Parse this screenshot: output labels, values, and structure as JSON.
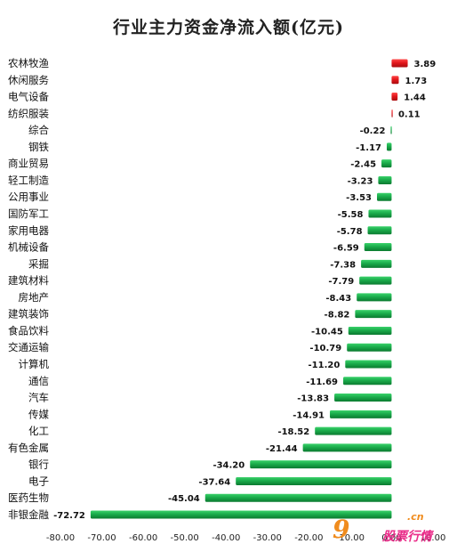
{
  "chart_data": {
    "type": "bar",
    "orientation": "horizontal",
    "title": "行业主力资金净流入额(亿元)",
    "categories": [
      "农林牧渔",
      "休闲服务",
      "电气设备",
      "纺织服装",
      "综合",
      "钢铁",
      "商业贸易",
      "轻工制造",
      "公用事业",
      "国防军工",
      "家用电器",
      "机械设备",
      "采掘",
      "建筑材料",
      "房地产",
      "建筑装饰",
      "食品饮料",
      "交通运输",
      "计算机",
      "通信",
      "汽车",
      "传媒",
      "化工",
      "有色金属",
      "银行",
      "电子",
      "医药生物",
      "非银金融"
    ],
    "values": [
      3.89,
      1.73,
      1.44,
      0.11,
      -0.22,
      -1.17,
      -2.45,
      -3.23,
      -3.53,
      -5.58,
      -5.78,
      -6.59,
      -7.38,
      -7.79,
      -8.43,
      -8.82,
      -10.45,
      -10.79,
      -11.2,
      -11.69,
      -13.83,
      -14.91,
      -18.52,
      -21.44,
      -34.2,
      -37.64,
      -45.04,
      -72.72
    ],
    "value_labels": [
      "3.89",
      "1.73",
      "1.44",
      "0.11",
      "-0.22",
      "-1.17",
      "-2.45",
      "-3.23",
      "-3.53",
      "-5.58",
      "-5.78",
      "-6.59",
      "-7.38",
      "-7.79",
      "-8.43",
      "-8.82",
      "-10.45",
      "-10.79",
      "-11.20",
      "-11.69",
      "-13.83",
      "-14.91",
      "-18.52",
      "-21.44",
      "-34.20",
      "-37.64",
      "-45.04",
      "-72.72"
    ],
    "xlim": [
      -80,
      10
    ],
    "x_ticks": [
      -80,
      -70,
      -60,
      -50,
      -40,
      -30,
      -20,
      -10,
      0,
      10
    ],
    "x_tick_labels": [
      "-80.00",
      "-70.00",
      "-60.00",
      "-50.00",
      "-40.00",
      "-30.00",
      "-20.00",
      "-10.00",
      "0.00",
      "10.00"
    ],
    "grid": false,
    "legend": "none",
    "colors": {
      "positive": "#e3161b",
      "negative": "#1aab4b",
      "positive_dark": "#a80d10",
      "negative_dark": "#0b7a30"
    }
  },
  "watermark": {
    "logo": "9",
    "domain": ".cn",
    "name": "股票行情"
  }
}
